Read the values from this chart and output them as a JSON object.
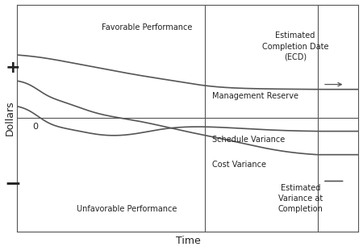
{
  "xlabel": "Time",
  "ylabel": "Dollars",
  "background_color": "#ffffff",
  "line_color": "#555555",
  "text_color": "#222222",
  "vline1_x": 0.55,
  "vline2_x": 0.88,
  "ylim": [
    -1.0,
    1.0
  ],
  "xlim": [
    0.0,
    1.0
  ],
  "fontsize": 7,
  "plus_text": "+",
  "minus_text": "−",
  "zero_text": "0",
  "favorable_text": "Favorable Performance",
  "unfavorable_text": "Unfavorable Performance",
  "mr_text": "Management Reserve",
  "sv_text": "Schedule Variance",
  "cv_text": "Cost Variance",
  "ecd_text": "Estimated\nCompletion Date\n(ECD)",
  "evac_text": "Estimated\nVariance at\nCompletion"
}
